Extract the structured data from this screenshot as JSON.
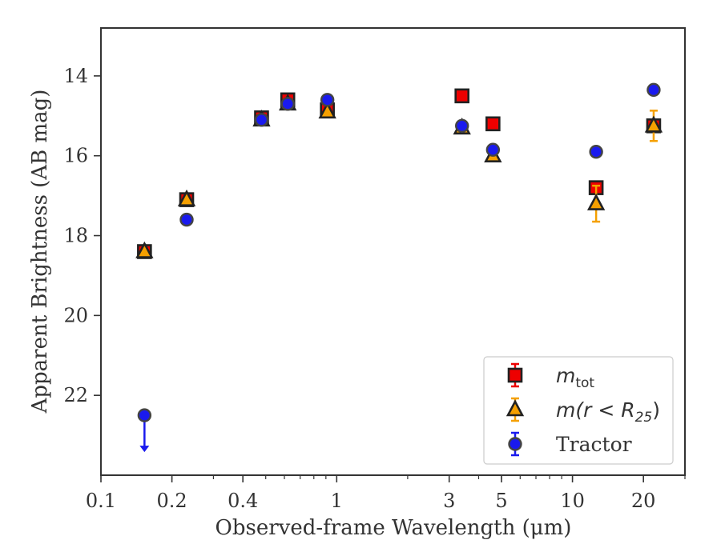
{
  "chart_data": {
    "type": "scatter",
    "xlabel": "Observed-frame Wavelength (μm)",
    "ylabel": "Apparent Brightness (AB mag)",
    "x_scale": "log",
    "xlim": [
      0.1,
      30
    ],
    "ylim": [
      24,
      12.8
    ],
    "y_inverted": true,
    "grid": false,
    "legend_position": "bottom-right",
    "x_ticks": [
      {
        "value": 0.1,
        "label": "0.1"
      },
      {
        "value": 0.2,
        "label": "0.2"
      },
      {
        "value": 0.4,
        "label": "0.4"
      },
      {
        "value": 1,
        "label": "1"
      },
      {
        "value": 3,
        "label": "3"
      },
      {
        "value": 5,
        "label": "5"
      },
      {
        "value": 10,
        "label": "10"
      },
      {
        "value": 20,
        "label": "20"
      }
    ],
    "y_ticks": [
      {
        "value": 14,
        "label": "14"
      },
      {
        "value": 16,
        "label": "16"
      },
      {
        "value": 18,
        "label": "18"
      },
      {
        "value": 20,
        "label": "20"
      },
      {
        "value": 22,
        "label": "22"
      }
    ],
    "series": [
      {
        "name": "m_tot",
        "legend_label": "m",
        "legend_subscript": "tot",
        "marker": "square",
        "color": "#ee0000",
        "edge": "#222222",
        "points": [
          {
            "x": 0.153,
            "y": 18.4,
            "err": 0.05
          },
          {
            "x": 0.231,
            "y": 17.1,
            "err": 0.05
          },
          {
            "x": 0.48,
            "y": 15.05,
            "err": 0.05
          },
          {
            "x": 0.62,
            "y": 14.6,
            "err": 0.05
          },
          {
            "x": 0.913,
            "y": 14.85,
            "err": 0.05
          },
          {
            "x": 3.4,
            "y": 14.5,
            "err": 0.05
          },
          {
            "x": 4.6,
            "y": 15.2,
            "err": 0.05
          },
          {
            "x": 12.6,
            "y": 16.8,
            "err": 0.05
          },
          {
            "x": 22.1,
            "y": 15.25,
            "err": 0.05
          }
        ]
      },
      {
        "name": "m(r < R25)",
        "legend_label": "m(r < R",
        "legend_subscript": "25",
        "legend_suffix": ")",
        "marker": "triangle",
        "color": "#f5a000",
        "edge": "#222222",
        "points": [
          {
            "x": 0.153,
            "y": 18.4,
            "err": 0.05
          },
          {
            "x": 0.231,
            "y": 17.1,
            "err": 0.05
          },
          {
            "x": 0.48,
            "y": 15.1,
            "err": 0.05
          },
          {
            "x": 0.62,
            "y": 14.7,
            "err": 0.05
          },
          {
            "x": 0.913,
            "y": 14.9,
            "err": 0.05
          },
          {
            "x": 3.4,
            "y": 15.3,
            "err": 0.05
          },
          {
            "x": 4.6,
            "y": 16.0,
            "err": 0.05
          },
          {
            "x": 12.6,
            "y": 17.2,
            "err": 0.45
          },
          {
            "x": 22.1,
            "y": 15.25,
            "err": 0.38
          }
        ]
      },
      {
        "name": "Tractor",
        "legend_label": "Tractor",
        "marker": "circle",
        "color": "#1a1aee",
        "edge": "#444444",
        "points": [
          {
            "x": 0.153,
            "y": 22.5,
            "err": 0,
            "upper_limit": true
          },
          {
            "x": 0.231,
            "y": 17.6,
            "err": 0.05
          },
          {
            "x": 0.48,
            "y": 15.1,
            "err": 0.05
          },
          {
            "x": 0.62,
            "y": 14.7,
            "err": 0.05
          },
          {
            "x": 0.913,
            "y": 14.6,
            "err": 0.05
          },
          {
            "x": 3.4,
            "y": 15.25,
            "err": 0.05
          },
          {
            "x": 4.6,
            "y": 15.85,
            "err": 0.05
          },
          {
            "x": 12.6,
            "y": 15.9,
            "err": 0.05
          },
          {
            "x": 22.1,
            "y": 14.35,
            "err": 0.05
          }
        ]
      }
    ]
  }
}
